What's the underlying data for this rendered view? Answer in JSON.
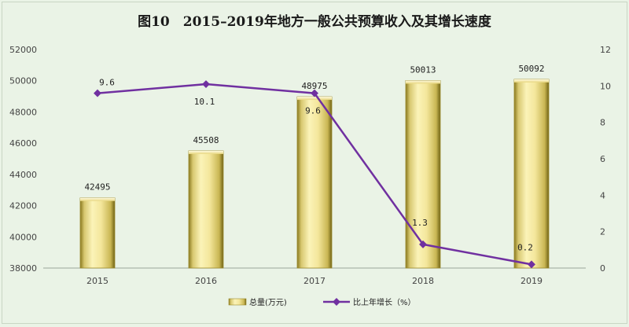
{
  "chart_data": {
    "type": "bar+line",
    "title": "图10　2015–2019年地方一般公共预算收入及其增长速度",
    "categories": [
      "2015",
      "2016",
      "2017",
      "2018",
      "2019"
    ],
    "series": [
      {
        "name": "总量(万元)",
        "type": "bar",
        "axis": "left",
        "values": [
          42495,
          45508,
          48975,
          50013,
          50092
        ],
        "labels": [
          "42495",
          "45508",
          "48975",
          "50013",
          "50092"
        ],
        "color": "#f2e49a"
      },
      {
        "name": "比上年增长（%）",
        "type": "line",
        "axis": "right",
        "values": [
          9.6,
          10.1,
          9.6,
          1.3,
          0.2
        ],
        "labels": [
          "9.6",
          "10.1",
          "9.6",
          "1.3",
          "0.2"
        ],
        "color": "#7030a0"
      }
    ],
    "y_left": {
      "lim": [
        38000,
        52000
      ],
      "ticks": [
        "38000",
        "40000",
        "42000",
        "44000",
        "46000",
        "48000",
        "50000",
        "52000"
      ]
    },
    "y_right": {
      "lim": [
        0,
        12
      ],
      "ticks": [
        "0",
        "2",
        "4",
        "6",
        "8",
        "10",
        "12"
      ]
    },
    "grid": false,
    "legend_position": "bottom"
  }
}
